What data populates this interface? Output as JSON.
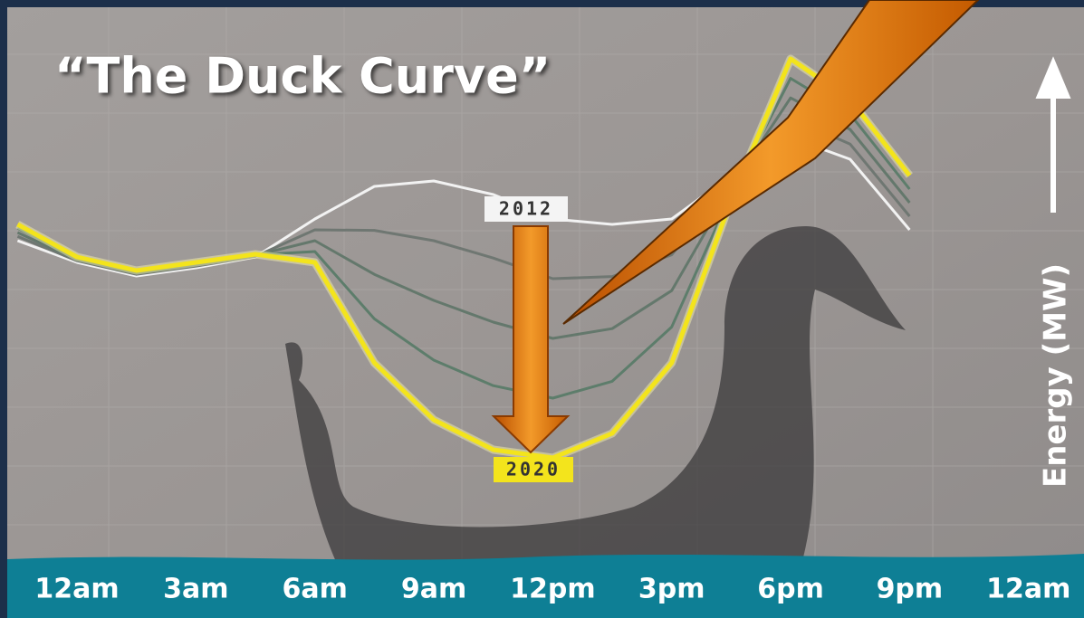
{
  "chart_data": {
    "type": "line",
    "title": "“The Duck Curve”",
    "y_label": "Energy (MW)",
    "x": [
      -1.5,
      0,
      1.5,
      3,
      4.5,
      6,
      7.5,
      9,
      10.5,
      12,
      13.5,
      15,
      16.5,
      18,
      19.5,
      21
    ],
    "xlim": [
      -1.6,
      25.4
    ],
    "xticks": [
      {
        "value": 0,
        "label": "12am"
      },
      {
        "value": 3,
        "label": "3am"
      },
      {
        "value": 6,
        "label": "6am"
      },
      {
        "value": 9,
        "label": "9am"
      },
      {
        "value": 12,
        "label": "12pm"
      },
      {
        "value": 15,
        "label": "3pm"
      },
      {
        "value": 18,
        "label": "6pm"
      },
      {
        "value": 21,
        "label": "9pm"
      },
      {
        "value": 24,
        "label": "12am"
      }
    ],
    "ylim": [
      0,
      100
    ],
    "series": [
      {
        "name": "2012",
        "color": "#f2f2f2",
        "values": [
          59,
          55,
          52.5,
          54,
          56,
          63,
          69,
          70,
          67.5,
          63,
          62,
          63,
          71,
          78,
          74,
          61
        ]
      },
      {
        "color": "#6f7772",
        "values": [
          59.8,
          55.3,
          52.8,
          54.3,
          56.1,
          61,
          60.9,
          59,
          55.8,
          52,
          52.4,
          56.4,
          69.9,
          81.6,
          76.8,
          63.5
        ]
      },
      {
        "color": "#64786c",
        "values": [
          60.5,
          55.5,
          53,
          54.5,
          56.3,
          59,
          52.8,
          48,
          44,
          41,
          42.8,
          49.8,
          68.8,
          85.3,
          79.5,
          66
        ]
      },
      {
        "color": "#5d7d6b",
        "values": [
          61.3,
          55.8,
          53.3,
          54.8,
          56.4,
          57,
          44.6,
          37,
          32.3,
          30,
          33.1,
          43.1,
          67.6,
          88.9,
          82.3,
          68.5
        ]
      },
      {
        "name": "2020",
        "color": "#f3e41c",
        "values": [
          62,
          56,
          53.5,
          55,
          56.5,
          55,
          36.5,
          26,
          20.5,
          19,
          23.5,
          36.5,
          66.5,
          92.5,
          85,
          71
        ]
      }
    ]
  }
}
